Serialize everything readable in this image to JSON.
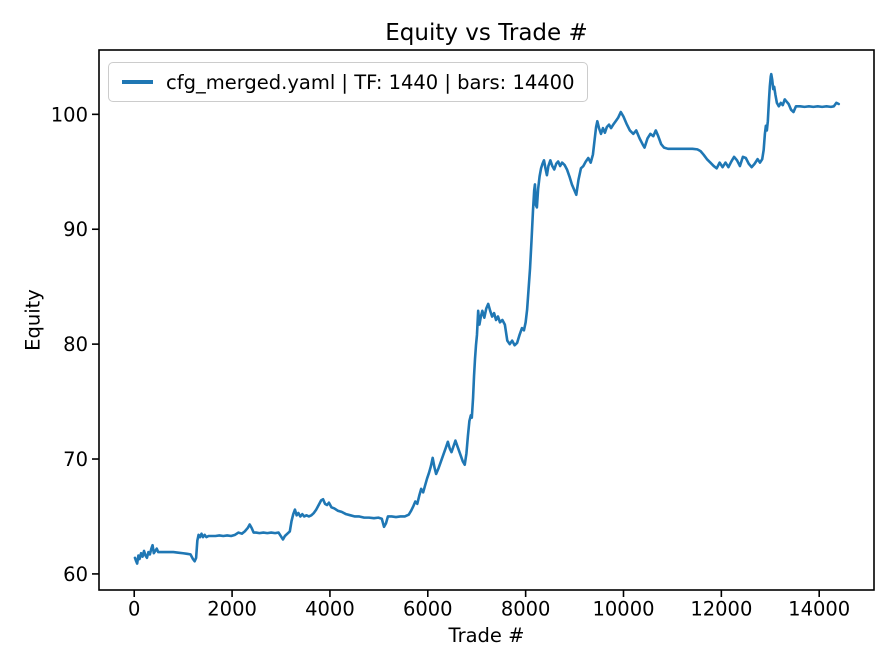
{
  "chart_data": {
    "type": "line",
    "title": "Equity vs Trade #",
    "xlabel": "Trade #",
    "ylabel": "Equity",
    "x_ticks": [
      0,
      2000,
      4000,
      6000,
      8000,
      10000,
      12000,
      14000
    ],
    "y_ticks": [
      60,
      70,
      80,
      90,
      100
    ],
    "xlim": [
      -720,
      15120
    ],
    "ylim": [
      58.6,
      105.6
    ],
    "grid": false,
    "legend_position": "upper-left",
    "axis_color": "#000000",
    "legend_border_color": "#cccccc",
    "series": [
      {
        "name": "cfg_merged.yaml | TF: 1440 | bars: 14400",
        "color": "#1f77b4",
        "points": [
          [
            15,
            61.4
          ],
          [
            40,
            61.1
          ],
          [
            60,
            60.9
          ],
          [
            85,
            61.6
          ],
          [
            110,
            61.3
          ],
          [
            140,
            61.8
          ],
          [
            170,
            61.5
          ],
          [
            200,
            62.0
          ],
          [
            230,
            61.6
          ],
          [
            260,
            61.4
          ],
          [
            290,
            61.9
          ],
          [
            320,
            61.7
          ],
          [
            350,
            62.2
          ],
          [
            375,
            62.5
          ],
          [
            400,
            61.8
          ],
          [
            430,
            62.0
          ],
          [
            460,
            62.2
          ],
          [
            490,
            61.9
          ],
          [
            530,
            61.9
          ],
          [
            600,
            61.9
          ],
          [
            700,
            61.9
          ],
          [
            800,
            61.9
          ],
          [
            900,
            61.85
          ],
          [
            1000,
            61.8
          ],
          [
            1080,
            61.75
          ],
          [
            1150,
            61.7
          ],
          [
            1200,
            61.3
          ],
          [
            1235,
            61.1
          ],
          [
            1265,
            61.4
          ],
          [
            1290,
            62.9
          ],
          [
            1315,
            63.4
          ],
          [
            1345,
            63.2
          ],
          [
            1375,
            63.5
          ],
          [
            1405,
            63.2
          ],
          [
            1440,
            63.4
          ],
          [
            1475,
            63.2
          ],
          [
            1520,
            63.3
          ],
          [
            1580,
            63.3
          ],
          [
            1660,
            63.3
          ],
          [
            1740,
            63.35
          ],
          [
            1820,
            63.3
          ],
          [
            1900,
            63.35
          ],
          [
            1980,
            63.3
          ],
          [
            2060,
            63.4
          ],
          [
            2130,
            63.6
          ],
          [
            2200,
            63.5
          ],
          [
            2260,
            63.7
          ],
          [
            2320,
            64.0
          ],
          [
            2360,
            64.3
          ],
          [
            2400,
            64.0
          ],
          [
            2440,
            63.6
          ],
          [
            2490,
            63.6
          ],
          [
            2560,
            63.55
          ],
          [
            2640,
            63.6
          ],
          [
            2720,
            63.55
          ],
          [
            2800,
            63.6
          ],
          [
            2880,
            63.55
          ],
          [
            2950,
            63.6
          ],
          [
            3010,
            63.2
          ],
          [
            3040,
            63.0
          ],
          [
            3080,
            63.3
          ],
          [
            3130,
            63.5
          ],
          [
            3180,
            63.7
          ],
          [
            3215,
            64.6
          ],
          [
            3250,
            65.2
          ],
          [
            3285,
            65.6
          ],
          [
            3320,
            65.1
          ],
          [
            3355,
            65.3
          ],
          [
            3395,
            65.0
          ],
          [
            3435,
            65.2
          ],
          [
            3475,
            65.0
          ],
          [
            3520,
            65.1
          ],
          [
            3570,
            65.0
          ],
          [
            3620,
            65.1
          ],
          [
            3670,
            65.3
          ],
          [
            3720,
            65.6
          ],
          [
            3770,
            66.0
          ],
          [
            3820,
            66.4
          ],
          [
            3860,
            66.5
          ],
          [
            3900,
            66.1
          ],
          [
            3940,
            66.0
          ],
          [
            3980,
            66.2
          ],
          [
            4030,
            65.8
          ],
          [
            4090,
            65.7
          ],
          [
            4160,
            65.5
          ],
          [
            4240,
            65.4
          ],
          [
            4330,
            65.2
          ],
          [
            4420,
            65.1
          ],
          [
            4510,
            65.0
          ],
          [
            4600,
            65.0
          ],
          [
            4700,
            64.9
          ],
          [
            4800,
            64.9
          ],
          [
            4900,
            64.85
          ],
          [
            4990,
            64.9
          ],
          [
            5060,
            64.8
          ],
          [
            5105,
            64.1
          ],
          [
            5145,
            64.4
          ],
          [
            5185,
            65.0
          ],
          [
            5260,
            65.0
          ],
          [
            5350,
            64.95
          ],
          [
            5440,
            65.0
          ],
          [
            5530,
            65.0
          ],
          [
            5610,
            65.15
          ],
          [
            5660,
            65.5
          ],
          [
            5705,
            65.9
          ],
          [
            5745,
            66.3
          ],
          [
            5785,
            66.1
          ],
          [
            5825,
            66.8
          ],
          [
            5865,
            67.4
          ],
          [
            5905,
            67.1
          ],
          [
            5945,
            67.7
          ],
          [
            5985,
            68.3
          ],
          [
            6025,
            68.8
          ],
          [
            6065,
            69.4
          ],
          [
            6100,
            70.1
          ],
          [
            6135,
            69.3
          ],
          [
            6170,
            68.7
          ],
          [
            6220,
            69.2
          ],
          [
            6270,
            69.8
          ],
          [
            6320,
            70.4
          ],
          [
            6370,
            71.0
          ],
          [
            6410,
            71.5
          ],
          [
            6450,
            70.9
          ],
          [
            6485,
            70.6
          ],
          [
            6525,
            71.1
          ],
          [
            6565,
            71.6
          ],
          [
            6615,
            71.0
          ],
          [
            6665,
            70.4
          ],
          [
            6715,
            69.8
          ],
          [
            6755,
            69.5
          ],
          [
            6790,
            70.5
          ],
          [
            6820,
            72.0
          ],
          [
            6850,
            73.3
          ],
          [
            6880,
            73.8
          ],
          [
            6900,
            73.6
          ],
          [
            6925,
            75.3
          ],
          [
            6945,
            77.2
          ],
          [
            6965,
            78.7
          ],
          [
            6985,
            79.9
          ],
          [
            7005,
            80.8
          ],
          [
            7030,
            82.9
          ],
          [
            7055,
            81.7
          ],
          [
            7085,
            82.4
          ],
          [
            7115,
            82.9
          ],
          [
            7155,
            82.3
          ],
          [
            7195,
            83.1
          ],
          [
            7235,
            83.5
          ],
          [
            7275,
            82.9
          ],
          [
            7315,
            82.4
          ],
          [
            7355,
            82.7
          ],
          [
            7395,
            82.1
          ],
          [
            7435,
            82.4
          ],
          [
            7475,
            81.9
          ],
          [
            7525,
            82.1
          ],
          [
            7575,
            81.7
          ],
          [
            7625,
            80.3
          ],
          [
            7675,
            80.0
          ],
          [
            7725,
            80.3
          ],
          [
            7775,
            79.9
          ],
          [
            7825,
            80.1
          ],
          [
            7875,
            80.8
          ],
          [
            7925,
            81.4
          ],
          [
            7965,
            81.2
          ],
          [
            8000,
            81.9
          ],
          [
            8030,
            83.0
          ],
          [
            8060,
            84.8
          ],
          [
            8090,
            86.6
          ],
          [
            8120,
            89.0
          ],
          [
            8150,
            91.6
          ],
          [
            8175,
            93.4
          ],
          [
            8190,
            93.9
          ],
          [
            8210,
            92.1
          ],
          [
            8230,
            91.9
          ],
          [
            8255,
            93.5
          ],
          [
            8285,
            94.6
          ],
          [
            8315,
            95.3
          ],
          [
            8345,
            95.7
          ],
          [
            8375,
            96.0
          ],
          [
            8405,
            95.3
          ],
          [
            8435,
            94.7
          ],
          [
            8465,
            95.5
          ],
          [
            8505,
            96.0
          ],
          [
            8545,
            95.5
          ],
          [
            8585,
            95.2
          ],
          [
            8625,
            95.7
          ],
          [
            8665,
            95.9
          ],
          [
            8705,
            95.5
          ],
          [
            8745,
            95.8
          ],
          [
            8795,
            95.6
          ],
          [
            8845,
            95.2
          ],
          [
            8895,
            94.6
          ],
          [
            8945,
            93.9
          ],
          [
            8995,
            93.4
          ],
          [
            9035,
            93.0
          ],
          [
            9080,
            94.3
          ],
          [
            9130,
            95.3
          ],
          [
            9180,
            95.5
          ],
          [
            9230,
            95.9
          ],
          [
            9280,
            96.2
          ],
          [
            9330,
            95.8
          ],
          [
            9375,
            96.5
          ],
          [
            9410,
            97.8
          ],
          [
            9440,
            98.9
          ],
          [
            9465,
            99.4
          ],
          [
            9500,
            98.8
          ],
          [
            9540,
            98.3
          ],
          [
            9580,
            98.8
          ],
          [
            9620,
            98.4
          ],
          [
            9660,
            98.9
          ],
          [
            9705,
            99.1
          ],
          [
            9745,
            98.8
          ],
          [
            9790,
            99.1
          ],
          [
            9840,
            99.4
          ],
          [
            9890,
            99.7
          ],
          [
            9945,
            100.2
          ],
          [
            10000,
            99.8
          ],
          [
            10060,
            99.2
          ],
          [
            10130,
            98.6
          ],
          [
            10200,
            98.3
          ],
          [
            10260,
            98.6
          ],
          [
            10330,
            97.9
          ],
          [
            10390,
            97.4
          ],
          [
            10430,
            97.1
          ],
          [
            10490,
            97.9
          ],
          [
            10550,
            98.3
          ],
          [
            10610,
            98.1
          ],
          [
            10660,
            98.6
          ],
          [
            10710,
            98.1
          ],
          [
            10770,
            97.4
          ],
          [
            10830,
            97.1
          ],
          [
            10910,
            97.0
          ],
          [
            11010,
            97.0
          ],
          [
            11110,
            97.0
          ],
          [
            11210,
            97.0
          ],
          [
            11310,
            97.0
          ],
          [
            11410,
            97.0
          ],
          [
            11510,
            96.95
          ],
          [
            11575,
            96.8
          ],
          [
            11635,
            96.5
          ],
          [
            11705,
            96.1
          ],
          [
            11775,
            95.8
          ],
          [
            11845,
            95.5
          ],
          [
            11905,
            95.3
          ],
          [
            11965,
            95.8
          ],
          [
            12025,
            95.4
          ],
          [
            12085,
            95.8
          ],
          [
            12145,
            95.4
          ],
          [
            12205,
            95.9
          ],
          [
            12260,
            96.3
          ],
          [
            12320,
            96.0
          ],
          [
            12380,
            95.5
          ],
          [
            12440,
            96.3
          ],
          [
            12500,
            96.2
          ],
          [
            12560,
            95.7
          ],
          [
            12620,
            95.4
          ],
          [
            12680,
            95.7
          ],
          [
            12740,
            96.1
          ],
          [
            12790,
            95.8
          ],
          [
            12835,
            96.1
          ],
          [
            12865,
            96.9
          ],
          [
            12890,
            98.3
          ],
          [
            12910,
            99.0
          ],
          [
            12930,
            98.6
          ],
          [
            12950,
            99.4
          ],
          [
            12970,
            101.0
          ],
          [
            12990,
            102.4
          ],
          [
            13010,
            103.3
          ],
          [
            13020,
            103.5
          ],
          [
            13040,
            103.0
          ],
          [
            13060,
            102.2
          ],
          [
            13080,
            102.4
          ],
          [
            13105,
            101.7
          ],
          [
            13135,
            101.0
          ],
          [
            13175,
            100.7
          ],
          [
            13215,
            101.0
          ],
          [
            13255,
            100.8
          ],
          [
            13295,
            101.3
          ],
          [
            13335,
            101.1
          ],
          [
            13375,
            100.9
          ],
          [
            13425,
            100.4
          ],
          [
            13475,
            100.2
          ],
          [
            13525,
            100.7
          ],
          [
            13610,
            100.7
          ],
          [
            13700,
            100.65
          ],
          [
            13790,
            100.7
          ],
          [
            13880,
            100.65
          ],
          [
            13970,
            100.7
          ],
          [
            14060,
            100.65
          ],
          [
            14150,
            100.7
          ],
          [
            14240,
            100.65
          ],
          [
            14300,
            100.7
          ],
          [
            14350,
            101.0
          ],
          [
            14400,
            100.9
          ]
        ]
      }
    ]
  }
}
